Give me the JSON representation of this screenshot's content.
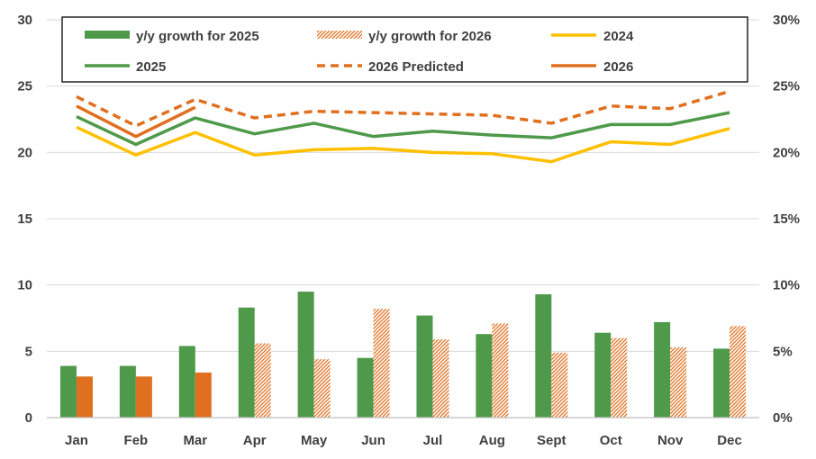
{
  "chart_data": {
    "type": "bar+line",
    "categories": [
      "Jan",
      "Feb",
      "Mar",
      "Apr",
      "May",
      "Jun",
      "Jul",
      "Aug",
      "Sept",
      "Oct",
      "Nov",
      "Dec"
    ],
    "left_axis": {
      "min": 0,
      "max": 30,
      "ticks": [
        0,
        5,
        10,
        15,
        20,
        25,
        30
      ]
    },
    "right_axis": {
      "min": 0,
      "max": 30,
      "tick_labels": [
        "0%",
        "5%",
        "10%",
        "15%",
        "20%",
        "25%",
        "30%"
      ]
    },
    "bar_series": [
      {
        "name": "y/y growth for 2025",
        "color": "#4E9A4A",
        "pattern": "solid",
        "values": [
          3.9,
          3.9,
          5.4,
          8.3,
          9.5,
          4.5,
          7.7,
          6.3,
          9.3,
          6.4,
          7.2,
          5.2
        ]
      },
      {
        "name": "y/y growth for 2026",
        "color": "#E07020",
        "pattern": "solid-then-hatched",
        "actual_count": 3,
        "values": [
          3.1,
          3.1,
          3.4,
          5.6,
          4.4,
          8.2,
          5.9,
          7.1,
          4.9,
          6.0,
          5.3,
          6.9
        ]
      }
    ],
    "line_series": [
      {
        "name": "2024",
        "color": "#FFC000",
        "dashed": false,
        "values": [
          21.9,
          19.8,
          21.5,
          19.8,
          20.2,
          20.3,
          20.0,
          19.9,
          19.3,
          20.8,
          20.6,
          21.8
        ]
      },
      {
        "name": "2025",
        "color": "#4E9A4A",
        "dashed": false,
        "values": [
          22.7,
          20.6,
          22.6,
          21.4,
          22.2,
          21.2,
          21.6,
          21.3,
          21.1,
          22.1,
          22.1,
          23.0
        ]
      },
      {
        "name": "2026 Predicted",
        "color": "#E07020",
        "dashed": true,
        "values": [
          24.2,
          22.0,
          24.0,
          22.6,
          23.1,
          23.0,
          22.9,
          22.8,
          22.2,
          23.5,
          23.3,
          24.6
        ]
      },
      {
        "name": "2026",
        "color": "#E07020",
        "dashed": false,
        "values": [
          23.5,
          21.2,
          23.4
        ]
      }
    ],
    "legend": {
      "position": "top",
      "entries": [
        "y/y growth for 2025",
        "y/y growth for 2026",
        "2024",
        "2025",
        "2026 Predicted",
        "2026"
      ]
    }
  }
}
